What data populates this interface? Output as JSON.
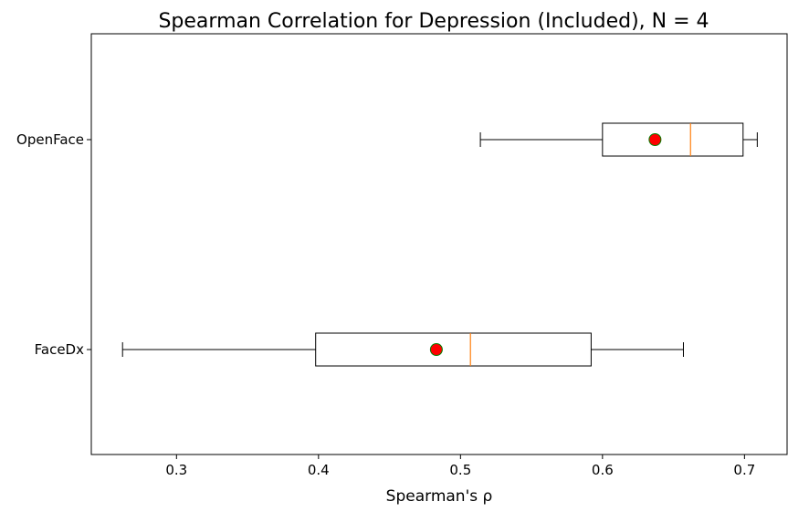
{
  "chart_data": {
    "type": "boxplot",
    "orientation": "horizontal",
    "title": "Spearman Correlation for Depression (Included), N = 4",
    "xlabel": "Spearman's ρ",
    "ylabel": "",
    "xlim": [
      0.24,
      0.73
    ],
    "xticks": [
      0.3,
      0.4,
      0.5,
      0.6,
      0.7
    ],
    "xtick_labels": [
      "0.3",
      "0.4",
      "0.5",
      "0.6",
      "0.7"
    ],
    "grid": false,
    "colors": {
      "box_edge": "#000000",
      "median": "#ff7f0e",
      "mean_fill": "#ff0000",
      "mean_edge": "#008000"
    },
    "series": [
      {
        "name": "OpenFace",
        "whisker_low": 0.514,
        "q1": 0.6,
        "median": 0.662,
        "q3": 0.699,
        "whisker_high": 0.709,
        "mean": 0.637
      },
      {
        "name": "FaceDx",
        "whisker_low": 0.262,
        "q1": 0.398,
        "median": 0.507,
        "q3": 0.592,
        "whisker_high": 0.657,
        "mean": 0.483
      }
    ]
  }
}
